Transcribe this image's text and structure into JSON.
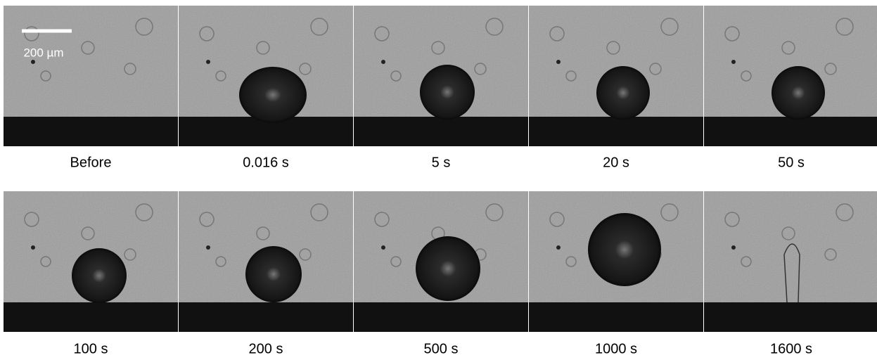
{
  "scale_bar": {
    "label": "200 µm"
  },
  "panels": [
    {
      "label": "Before"
    },
    {
      "label": "0.016 s"
    },
    {
      "label": "5 s"
    },
    {
      "label": "20 s"
    },
    {
      "label": "50 s"
    },
    {
      "label": "100 s"
    },
    {
      "label": "200 s"
    },
    {
      "label": "500 s"
    },
    {
      "label": "1000 s"
    },
    {
      "label": "1600 s"
    }
  ]
}
